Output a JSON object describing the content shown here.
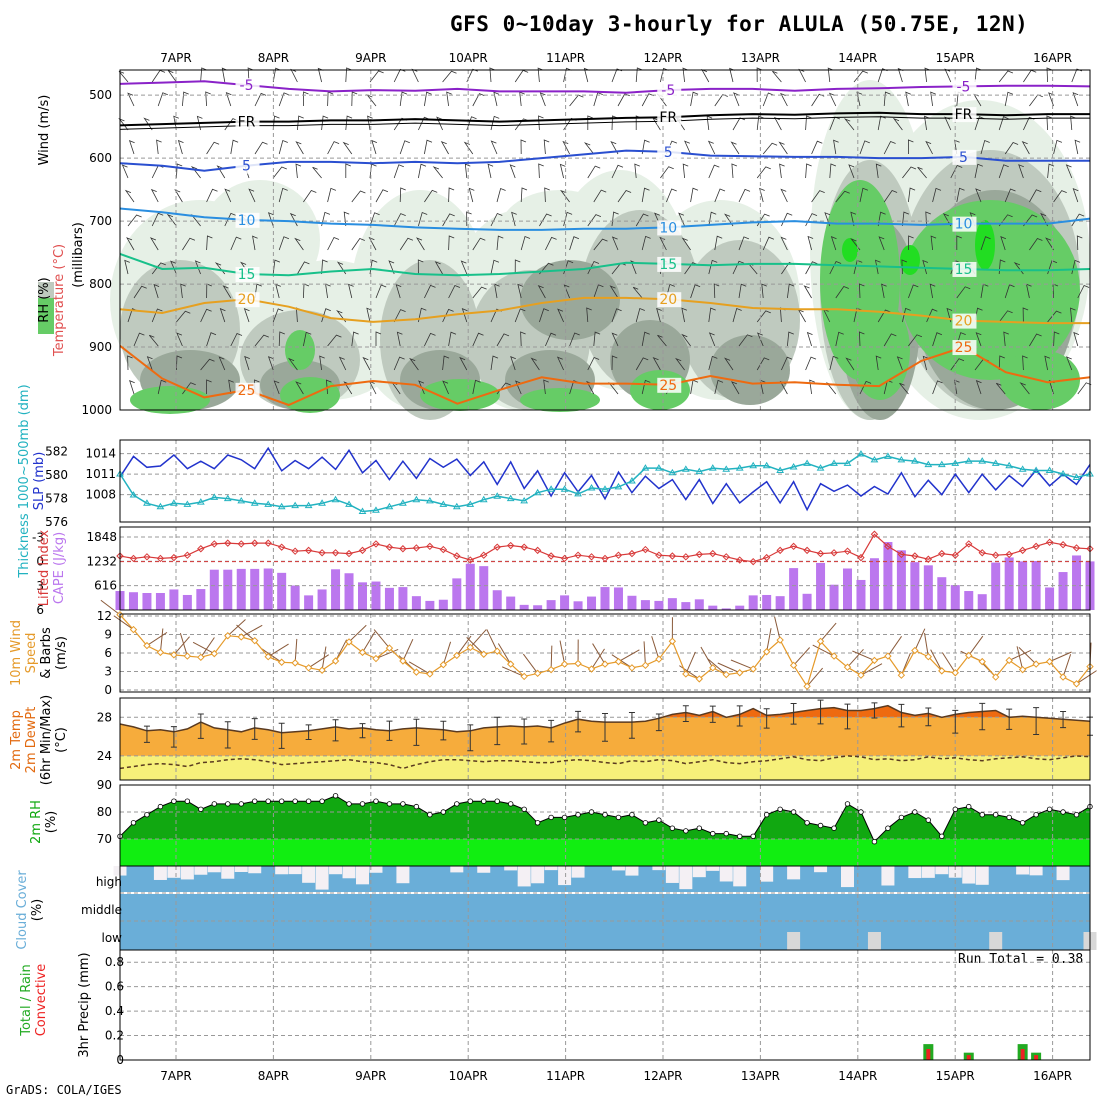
{
  "page": {
    "title": "GFS 0~10day 3-hourly for ALULA (50.75E, 12N)",
    "credit": "GrADS: COLA/IGES"
  },
  "colors": {
    "temp_contour_cold": "#8a22c8",
    "temp_contour_fr": "#000000",
    "temp_contour_5": "#2a4fd0",
    "temp_contour_10": "#2a8ee0",
    "temp_contour_15": "#18c08a",
    "temp_contour_20": "#e6a020",
    "temp_contour_25": "#ee6a10",
    "rh_light": "#e6f0e6",
    "rh_mid": "#bfcabf",
    "rh_dark": "#9aa89a",
    "rh_green": "#66cc66",
    "rh_bright": "#22dd22",
    "slp_line": "#2233cc",
    "thickness_line": "#22b2c0",
    "li_line": "#d83a3a",
    "cape_bar": "#bb77ee",
    "wind_line": "#e59a2a",
    "barb": "#8a5a3a",
    "temp_fill": "#f6ac3c",
    "temp_max_fill": "#ee6a10",
    "dewpt_fill": "#f6f07a",
    "rh2m_dark": "#11a811",
    "rh2m_bright": "#11ee11",
    "cloud_blue": "#6aaed8",
    "cloud_white": "#f4f0f4",
    "precip_total": "#22aa22",
    "precip_conv": "#ee2222"
  },
  "chart_data": [
    {
      "id": "cross-section",
      "type": "heatmap",
      "title": "GFS 0~10day 3-hourly for ALULA (50.75E, 12N)",
      "ylabel": "(millibars)",
      "legend_labels": [
        "RH (%)",
        "Temperature (°C)",
        "Wind (m/s)"
      ],
      "x_labels": [
        "7APR",
        "8APR",
        "9APR",
        "10APR",
        "11APR",
        "12APR",
        "13APR",
        "14APR",
        "15APR",
        "16APR"
      ],
      "y_ticks": [
        500,
        600,
        700,
        800,
        900,
        1000
      ],
      "ylim": [
        460,
        1000
      ],
      "rh_levels": [
        10,
        30,
        50,
        70,
        90
      ],
      "temperature_contours": [
        {
          "label": "-5",
          "p": [
            482,
            480,
            478,
            484,
            490,
            494,
            492,
            493,
            490,
            494,
            494,
            494,
            496,
            492,
            490,
            490,
            493,
            490,
            489,
            487,
            486,
            485,
            485,
            486
          ]
        },
        {
          "label": "FR",
          "p": [
            548,
            546,
            544,
            542,
            542,
            540,
            540,
            538,
            540,
            542,
            540,
            538,
            536,
            535,
            532,
            530,
            531,
            529,
            528,
            530,
            530,
            532,
            530,
            530
          ]
        },
        {
          "label": "5",
          "p": [
            608,
            612,
            620,
            612,
            606,
            606,
            608,
            606,
            608,
            606,
            600,
            594,
            588,
            590,
            596,
            597,
            598,
            598,
            600,
            600,
            598,
            604,
            604,
            604
          ]
        },
        {
          "label": "10",
          "p": [
            680,
            686,
            694,
            698,
            700,
            704,
            706,
            710,
            712,
            714,
            714,
            712,
            712,
            710,
            706,
            702,
            700,
            704,
            704,
            706,
            704,
            704,
            704,
            696
          ]
        },
        {
          "label": "15",
          "p": [
            752,
            776,
            774,
            784,
            786,
            780,
            776,
            784,
            786,
            784,
            780,
            776,
            766,
            768,
            770,
            768,
            768,
            770,
            772,
            774,
            776,
            778,
            778,
            776
          ]
        },
        {
          "label": "20",
          "p": [
            840,
            846,
            830,
            824,
            836,
            854,
            860,
            856,
            848,
            842,
            830,
            822,
            822,
            824,
            830,
            838,
            840,
            840,
            844,
            850,
            858,
            860,
            862,
            862
          ]
        },
        {
          "label": "25",
          "p": [
            898,
            950,
            980,
            968,
            992,
            962,
            954,
            960,
            990,
            968,
            948,
            958,
            958,
            960,
            946,
            958,
            956,
            960,
            962,
            922,
            900,
            940,
            956,
            948
          ]
        }
      ]
    },
    {
      "id": "slp-thickness",
      "type": "line",
      "ylabel": "SLP (mb)",
      "y2label": "Thickness 1000~500mb (dm)",
      "y_ticks": [
        1008,
        1011,
        1014
      ],
      "y2_ticks": [
        576,
        578,
        580,
        582
      ],
      "ylim": [
        1004,
        1016
      ],
      "y2lim": [
        576,
        583
      ],
      "series": [
        {
          "name": "SLP",
          "values": [
            1010.6,
            1013.6,
            1012.0,
            1012.2,
            1013.8,
            1011.8,
            1012.9,
            1011.8,
            1013.8,
            1013.1,
            1011.8,
            1014.8,
            1011.5,
            1013.0,
            1011.8,
            1013.5,
            1011.7,
            1014.5,
            1011.2,
            1013.0,
            1010.2,
            1012.9,
            1010.4,
            1013.3,
            1012.0,
            1013.2,
            1010.8,
            1012.8,
            1009.5,
            1012.8,
            1008.9,
            1011.5,
            1007.8,
            1011.2,
            1008.4,
            1010.8,
            1007.4,
            1011.3,
            1008.3,
            1010.7,
            1008.9,
            1010.2,
            1007.3,
            1010.2,
            1006.7,
            1009.6,
            1006.8,
            1008.4,
            1009.9,
            1006.8,
            1009.9,
            1005.8,
            1009.6,
            1008.5,
            1009.4,
            1007.8,
            1009.2,
            1008.1,
            1011.2,
            1007.7,
            1010.1,
            1008.0,
            1011.0,
            1008.3,
            1011.0,
            1008.7,
            1010.8,
            1009.2,
            1011.6,
            1009.3,
            1011.0,
            1009.5,
            1012.4
          ]
        },
        {
          "name": "Thickness",
          "values": [
            580.1,
            578.3,
            577.6,
            577.3,
            577.6,
            577.5,
            577.7,
            578.1,
            578.0,
            577.8,
            577.6,
            577.5,
            577.3,
            577.4,
            577.4,
            577.6,
            577.9,
            577.5,
            576.9,
            577.0,
            577.3,
            577.6,
            577.9,
            577.8,
            577.5,
            577.3,
            577.5,
            577.9,
            578.2,
            578.0,
            577.8,
            578.5,
            578.8,
            578.8,
            578.4,
            578.9,
            578.8,
            579.0,
            579.5,
            580.6,
            580.6,
            580.2,
            580.5,
            580.3,
            580.6,
            580.5,
            580.6,
            580.8,
            580.8,
            580.4,
            580.7,
            581.0,
            580.6,
            581.0,
            581.0,
            581.8,
            581.3,
            581.6,
            581.3,
            581.2,
            580.9,
            580.9,
            581.0,
            581.2,
            581.2,
            581.0,
            580.8,
            580.5,
            580.4,
            580.4,
            580.1,
            579.8,
            580.1
          ]
        }
      ]
    },
    {
      "id": "li-cape",
      "type": "bar",
      "ylabel": "Lifted Index",
      "y2label": "CAPE (J/kg)",
      "y_ticks": [
        -3,
        0,
        3,
        6
      ],
      "y2_ticks": [
        616,
        1232,
        1848
      ],
      "ylim": [
        -4.3,
        6
      ],
      "y2lim": [
        0,
        2100
      ],
      "series": [
        {
          "name": "Lifted Index",
          "values": [
            -0.7,
            -0.4,
            -0.6,
            -0.4,
            -0.5,
            -0.8,
            -1.6,
            -2.2,
            -2.3,
            -2.2,
            -2.3,
            -2.3,
            -1.8,
            -1.3,
            -1.4,
            -1.1,
            -1.1,
            -1.0,
            -1.4,
            -2.2,
            -1.8,
            -1.6,
            -1.7,
            -1.9,
            -1.5,
            -0.7,
            -0.2,
            -0.8,
            -1.8,
            -2.0,
            -1.8,
            -1.4,
            -0.7,
            -0.4,
            -0.8,
            -0.6,
            -0.4,
            -0.8,
            -1.0,
            -1.5,
            -0.8,
            -0.7,
            -0.6,
            -0.9,
            -1.0,
            -0.6,
            -0.2,
            0.0,
            -0.5,
            -1.4,
            -1.9,
            -1.4,
            -1.0,
            -1.1,
            -1.3,
            -0.5,
            -3.4,
            -1.9,
            -0.9,
            -0.7,
            -0.3,
            -1.0,
            -0.8,
            -2.2,
            -1.1,
            -0.8,
            -0.9,
            -1.4,
            -1.9,
            -2.4,
            -2.1,
            -1.7,
            -1.6
          ]
        },
        {
          "name": "CAPE",
          "values": [
            480,
            450,
            430,
            430,
            520,
            380,
            530,
            1020,
            1020,
            1040,
            1040,
            1050,
            940,
            620,
            370,
            520,
            1030,
            930,
            700,
            720,
            560,
            580,
            350,
            230,
            260,
            800,
            1170,
            1110,
            500,
            340,
            130,
            120,
            250,
            370,
            220,
            340,
            580,
            570,
            360,
            250,
            230,
            300,
            200,
            270,
            110,
            40,
            110,
            370,
            380,
            350,
            1060,
            410,
            1190,
            640,
            1050,
            760,
            1310,
            1720,
            1510,
            1210,
            1130,
            830,
            630,
            480,
            400,
            1200,
            1330,
            1230,
            1240,
            570,
            960,
            1380,
            1230
          ]
        }
      ]
    },
    {
      "id": "wind10m",
      "type": "line",
      "ylabel": "10m Wind Speed & Barbs (m/s)",
      "y_ticks": [
        0,
        3,
        6,
        9,
        12
      ],
      "ylim": [
        0,
        12
      ],
      "series": [
        {
          "name": "Wind speed",
          "values": [
            12.2,
            9.8,
            7.2,
            6.1,
            5.7,
            5.5,
            5.3,
            5.9,
            8.8,
            8.6,
            8.0,
            5.4,
            4.5,
            4.4,
            3.6,
            3.2,
            4.7,
            7.8,
            6.1,
            5.1,
            6.8,
            4.7,
            2.9,
            2.6,
            4.1,
            5.6,
            6.9,
            5.8,
            6.3,
            4.2,
            2.2,
            2.7,
            3.3,
            4.2,
            4.3,
            3.4,
            4.2,
            4.6,
            3.6,
            4.0,
            5.0,
            7.9,
            2.6,
            1.8,
            3.6,
            2.5,
            2.8,
            3.4,
            6.2,
            8.1,
            4.0,
            0.6,
            7.9,
            5.5,
            3.7,
            2.4,
            4.8,
            5.5,
            2.4,
            6.4,
            5.4,
            3.1,
            2.8,
            5.6,
            4.6,
            2.1,
            4.8,
            3.3,
            4.2,
            4.6,
            2.1,
            1.0,
            3.8
          ]
        }
      ]
    },
    {
      "id": "temp2m",
      "type": "area",
      "ylabel": "2m Temp 2m DewPt (6hr Min/Max) (°C)",
      "y_ticks": [
        24,
        28
      ],
      "ylim": [
        21.5,
        30
      ],
      "series": [
        {
          "name": "Temperature",
          "values": [
            27.3,
            27.0,
            26.6,
            26.7,
            26.5,
            26.8,
            27.5,
            26.9,
            26.7,
            26.5,
            26.9,
            26.7,
            26.4,
            26.5,
            26.6,
            26.8,
            27.0,
            26.8,
            26.9,
            26.7,
            26.6,
            26.8,
            26.9,
            26.8,
            26.7,
            26.5,
            26.6,
            26.9,
            27.0,
            27.1,
            27.0,
            27.1,
            26.9,
            27.4,
            27.8,
            27.6,
            27.5,
            27.5,
            27.5,
            27.6,
            27.9,
            28.3,
            28.5,
            28.2,
            28.6,
            28.0,
            28.3,
            28.9,
            28.2,
            28.3,
            28.5,
            28.7,
            28.9,
            29.0,
            28.7,
            28.7,
            28.9,
            29.2,
            28.5,
            28.2,
            28.4,
            28.0,
            28.3,
            28.5,
            28.6,
            28.7,
            28.0,
            28.1,
            28.0,
            27.9,
            27.8,
            27.7,
            27.6
          ]
        },
        {
          "name": "Dew point",
          "values": [
            22.7,
            22.9,
            23.1,
            23.2,
            23.1,
            22.9,
            23.3,
            23.4,
            23.6,
            23.7,
            23.6,
            23.4,
            23.1,
            23.2,
            23.3,
            23.4,
            23.5,
            23.6,
            23.4,
            23.3,
            23.1,
            22.7,
            23.1,
            23.4,
            23.6,
            23.6,
            23.5,
            23.4,
            23.5,
            23.5,
            23.4,
            23.3,
            23.3,
            23.5,
            23.6,
            23.5,
            23.3,
            23.2,
            23.5,
            23.4,
            23.6,
            23.5,
            23.2,
            23.4,
            23.6,
            23.3,
            23.2,
            23.4,
            23.5,
            23.7,
            23.9,
            23.6,
            23.5,
            23.8,
            24.0,
            23.9,
            23.6,
            23.7,
            23.5,
            23.6,
            23.9,
            23.7,
            23.8,
            23.6,
            23.5,
            23.7,
            23.8,
            23.9,
            23.7,
            23.6,
            23.8,
            24.0,
            23.9
          ]
        }
      ]
    },
    {
      "id": "rh2m",
      "type": "area",
      "ylabel": "2m RH (%)",
      "y_ticks": [
        70,
        80,
        90
      ],
      "ylim": [
        60,
        90
      ],
      "series": [
        {
          "name": "RH",
          "values": [
            71,
            76,
            79,
            82,
            84,
            84,
            81,
            83,
            83,
            83,
            84,
            84,
            84,
            84,
            84,
            84,
            86,
            83,
            83,
            84,
            83,
            83,
            82,
            79,
            80,
            83,
            84,
            84,
            84,
            83,
            81,
            76,
            78,
            78,
            79,
            80,
            79,
            78,
            79,
            76,
            77,
            74,
            73,
            74,
            72,
            72,
            71,
            71,
            79,
            81,
            80,
            76,
            75,
            74,
            83,
            80,
            69,
            74,
            78,
            80,
            77,
            71,
            81,
            82,
            79,
            79,
            78,
            76,
            79,
            81,
            80,
            79,
            82
          ]
        }
      ]
    },
    {
      "id": "cloud",
      "type": "heatmap",
      "ylabel": "Cloud Cover (%)",
      "y_categories": [
        "high",
        "middle",
        "low"
      ]
    },
    {
      "id": "precip",
      "type": "bar",
      "ylabel": "3hr Precip (mm)",
      "legend_labels": [
        "Total / Rain",
        "Convective"
      ],
      "y_ticks": [
        0,
        0.2,
        0.4,
        0.6,
        0.8
      ],
      "ylim": [
        0,
        0.9
      ],
      "run_total": "Run Total = 0.38",
      "series": [
        {
          "name": "Total",
          "values": [
            0.13,
            0.06,
            0.13,
            0.06
          ]
        },
        {
          "name": "Convective",
          "values": [
            0.09,
            0.04,
            0.09,
            0.04
          ]
        }
      ]
    }
  ]
}
